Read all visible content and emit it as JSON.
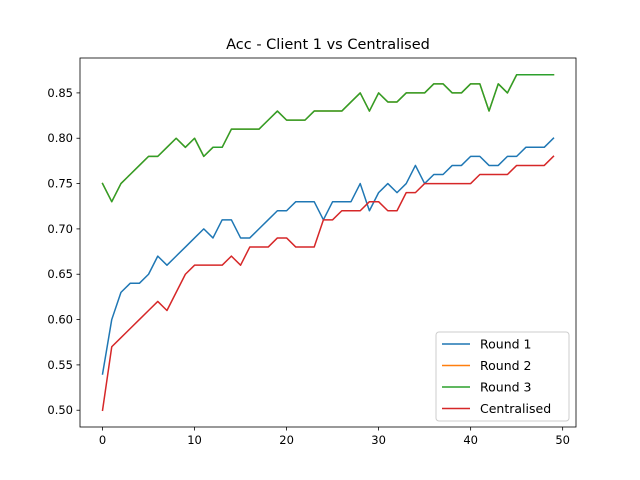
{
  "chart_data": {
    "type": "line",
    "title": "Acc - Client 1 vs Centralised",
    "xlabel": "",
    "ylabel": "",
    "xlim": [
      -2.45,
      51.45
    ],
    "ylim": [
      0.4815,
      0.8885
    ],
    "xticks": [
      0,
      10,
      20,
      30,
      40,
      50
    ],
    "yticks": [
      0.5,
      0.55,
      0.6,
      0.65,
      0.7,
      0.75,
      0.8,
      0.85
    ],
    "ytick_labels": [
      "0.50",
      "0.55",
      "0.60",
      "0.65",
      "0.70",
      "0.75",
      "0.80",
      "0.85"
    ],
    "grid": false,
    "legend_position": "lower-right",
    "x": [
      0,
      1,
      2,
      3,
      4,
      5,
      6,
      7,
      8,
      9,
      10,
      11,
      12,
      13,
      14,
      15,
      16,
      17,
      18,
      19,
      20,
      21,
      22,
      23,
      24,
      25,
      26,
      27,
      28,
      29,
      30,
      31,
      32,
      33,
      34,
      35,
      36,
      37,
      38,
      39,
      40,
      41,
      42,
      43,
      44,
      45,
      46,
      47,
      48,
      49
    ],
    "series": [
      {
        "name": "Round 1",
        "color": "#1f77b4",
        "values": [
          0.54,
          0.6,
          0.63,
          0.64,
          0.64,
          0.65,
          0.67,
          0.66,
          0.67,
          0.68,
          0.69,
          0.7,
          0.69,
          0.71,
          0.71,
          0.69,
          0.69,
          0.7,
          0.71,
          0.72,
          0.72,
          0.73,
          0.73,
          0.73,
          0.71,
          0.73,
          0.73,
          0.73,
          0.75,
          0.72,
          0.74,
          0.75,
          0.74,
          0.75,
          0.77,
          0.75,
          0.76,
          0.76,
          0.77,
          0.77,
          0.78,
          0.78,
          0.77,
          0.77,
          0.78,
          0.78,
          0.79,
          0.79,
          0.79,
          0.8
        ]
      },
      {
        "name": "Round 2",
        "color": "#ff7f0e",
        "values": [
          0.75,
          0.73,
          0.75,
          0.76,
          0.77,
          0.78,
          0.78,
          0.79,
          0.8,
          0.79,
          0.8,
          0.78,
          0.79,
          0.79,
          0.81,
          0.81,
          0.81,
          0.81,
          0.82,
          0.83,
          0.82,
          0.82,
          0.82,
          0.83,
          0.83,
          0.83,
          0.83,
          0.84,
          0.85,
          0.83,
          0.85,
          0.84,
          0.84,
          0.85,
          0.85,
          0.85,
          0.86,
          0.86,
          0.85,
          0.85,
          0.86,
          0.86,
          0.83,
          0.86,
          0.85,
          0.87,
          0.87,
          0.87,
          0.87,
          0.87
        ]
      },
      {
        "name": "Round 3",
        "color": "#2ca02c",
        "values": [
          0.75,
          0.73,
          0.75,
          0.76,
          0.77,
          0.78,
          0.78,
          0.79,
          0.8,
          0.79,
          0.8,
          0.78,
          0.79,
          0.79,
          0.81,
          0.81,
          0.81,
          0.81,
          0.82,
          0.83,
          0.82,
          0.82,
          0.82,
          0.83,
          0.83,
          0.83,
          0.83,
          0.84,
          0.85,
          0.83,
          0.85,
          0.84,
          0.84,
          0.85,
          0.85,
          0.85,
          0.86,
          0.86,
          0.85,
          0.85,
          0.86,
          0.86,
          0.83,
          0.86,
          0.85,
          0.87,
          0.87,
          0.87,
          0.87,
          0.87
        ]
      },
      {
        "name": "Centralised",
        "color": "#d62728",
        "values": [
          0.5,
          0.57,
          0.58,
          0.59,
          0.6,
          0.61,
          0.62,
          0.61,
          0.63,
          0.65,
          0.66,
          0.66,
          0.66,
          0.66,
          0.67,
          0.66,
          0.68,
          0.68,
          0.68,
          0.69,
          0.69,
          0.68,
          0.68,
          0.68,
          0.71,
          0.71,
          0.72,
          0.72,
          0.72,
          0.73,
          0.73,
          0.72,
          0.72,
          0.74,
          0.74,
          0.75,
          0.75,
          0.75,
          0.75,
          0.75,
          0.75,
          0.76,
          0.76,
          0.76,
          0.76,
          0.77,
          0.77,
          0.77,
          0.77,
          0.78
        ]
      }
    ]
  }
}
